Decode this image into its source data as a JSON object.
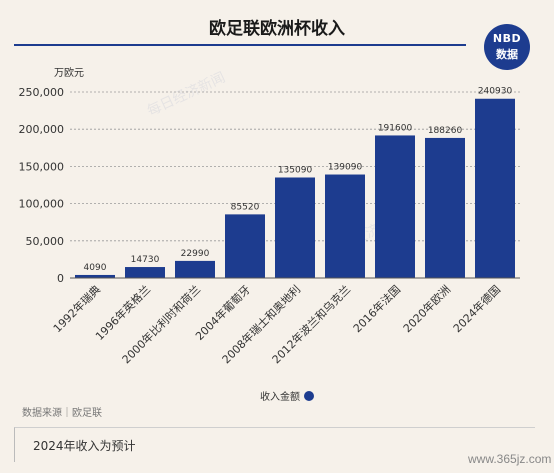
{
  "header": {
    "title": "欧足联欧洲杯收入",
    "logo_top": "NBD",
    "logo_bottom": "数据"
  },
  "chart_data": {
    "type": "bar",
    "title": "欧足联欧洲杯收入",
    "unit_label": "万欧元",
    "categories": [
      "1992年瑞典",
      "1996年英格兰",
      "2000年比利时和荷兰",
      "2004年葡萄牙",
      "2008年瑞士和奥地利",
      "2012年波兰和乌克兰",
      "2016年法国",
      "2020年欧洲",
      "2024年德国"
    ],
    "series": [
      {
        "name": "收入金额",
        "values": [
          4090,
          14730,
          22990,
          85520,
          135090,
          139090,
          191600,
          188260,
          240930
        ]
      }
    ],
    "data_labels": [
      "4090",
      "14730",
      "22990",
      "85520",
      "135090",
      "139090",
      "191600",
      "188260",
      "240930"
    ],
    "ylim": [
      0,
      250000
    ],
    "y_ticks": [
      0,
      50000,
      100000,
      150000,
      200000,
      250000
    ],
    "y_tick_labels": [
      "0",
      "50,000",
      "100,000",
      "150,000",
      "200,000",
      "250,000"
    ],
    "grid": true,
    "legend_position": "bottom-center",
    "bar_color": "#1d3c8f"
  },
  "footer": {
    "source": "数据来源｜欧足联",
    "note": "2024年收入为预计",
    "watermark": "www.365jz.com"
  },
  "watermark_text": "每日经济新闻"
}
